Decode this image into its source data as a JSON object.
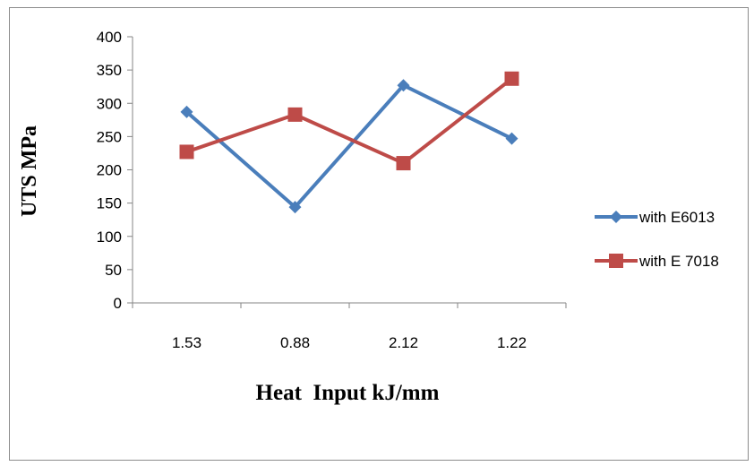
{
  "chart_data": {
    "type": "line",
    "title": "",
    "xlabel": "Heat  Input kJ/mm",
    "ylabel": "UTS MPa",
    "categories": [
      "1.53",
      "0.88",
      "2.12",
      "1.22"
    ],
    "ylim": [
      0,
      400
    ],
    "yticks": [
      0,
      50,
      100,
      150,
      200,
      250,
      300,
      350,
      400
    ],
    "ytick_labels": [
      "0",
      "50",
      "100",
      "150",
      "200",
      "250",
      "300",
      "350",
      "400"
    ],
    "grid": false,
    "legend_position": "right",
    "series": [
      {
        "name": "with E6013",
        "values": [
          287,
          144,
          327,
          247
        ],
        "color": "#4a7ebb",
        "marker": "diamond"
      },
      {
        "name": "with E 7018",
        "values": [
          227,
          283,
          210,
          337
        ],
        "color": "#be4b48",
        "marker": "square"
      }
    ]
  }
}
